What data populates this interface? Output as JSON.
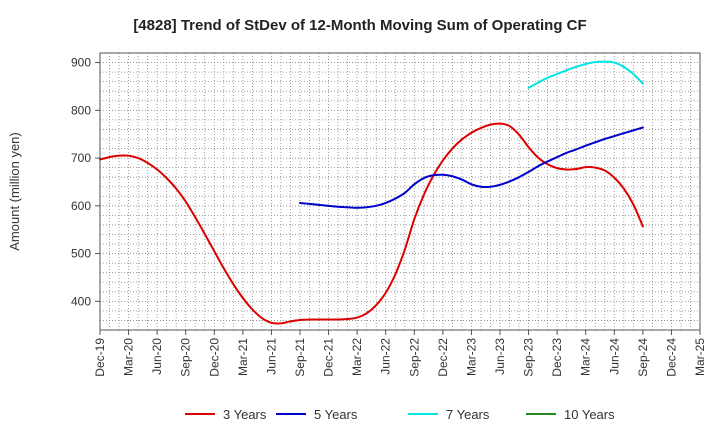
{
  "chart_data": {
    "type": "line",
    "title": "[4828]  Trend of StDev of 12-Month Moving Sum of Operating CF",
    "ylabel": "Amount (million yen)",
    "xlabel": "",
    "x_start": "Dec-19",
    "x_end": "Mar-25",
    "ylim": [
      340,
      920
    ],
    "yticks": [
      400,
      500,
      600,
      700,
      800,
      900
    ],
    "xticks": [
      "Dec-19",
      "Mar-20",
      "Jun-20",
      "Sep-20",
      "Dec-20",
      "Mar-21",
      "Jun-21",
      "Sep-21",
      "Dec-21",
      "Mar-22",
      "Jun-22",
      "Sep-22",
      "Dec-22",
      "Mar-23",
      "Jun-23",
      "Sep-23",
      "Dec-23",
      "Mar-24",
      "Jun-24",
      "Sep-24",
      "Dec-24",
      "Mar-25"
    ],
    "grid": true,
    "legend_position": "bottom",
    "series": [
      {
        "name": "3 Years",
        "color": "#dd0000",
        "x": [
          "Dec-19",
          "Jan-20",
          "Feb-20",
          "Mar-20",
          "Apr-20",
          "May-20",
          "Jun-20",
          "Jul-20",
          "Aug-20",
          "Sep-20",
          "Oct-20",
          "Nov-20",
          "Dec-20",
          "Jan-21",
          "Feb-21",
          "Mar-21",
          "Apr-21",
          "May-21",
          "Jun-21",
          "Jul-21",
          "Aug-21",
          "Sep-21",
          "Oct-21",
          "Nov-21",
          "Dec-21",
          "Jan-22",
          "Feb-22",
          "Mar-22",
          "Apr-22",
          "May-22",
          "Jun-22",
          "Jul-22",
          "Aug-22",
          "Sep-22",
          "Oct-22",
          "Nov-22",
          "Dec-22",
          "Jan-23",
          "Feb-23",
          "Mar-23",
          "Apr-23",
          "May-23",
          "Jun-23",
          "Jul-23",
          "Aug-23",
          "Sep-23",
          "Oct-23",
          "Nov-23",
          "Dec-23",
          "Jan-24",
          "Feb-24",
          "Mar-24",
          "Apr-24",
          "May-24",
          "Jun-24",
          "Jul-24",
          "Aug-24",
          "Sep-24"
        ],
        "values": [
          697,
          702,
          705,
          705,
          700,
          690,
          676,
          658,
          636,
          609,
          576,
          541,
          505,
          469,
          436,
          407,
          383,
          365,
          355,
          354,
          358,
          361,
          362,
          362,
          362,
          362,
          363,
          366,
          375,
          392,
          418,
          456,
          508,
          572,
          623,
          663,
          695,
          720,
          739,
          753,
          763,
          770,
          772,
          767,
          749,
          723,
          701,
          687,
          679,
          676,
          677,
          681,
          680,
          674,
          659,
          636,
          603,
          557
        ]
      },
      {
        "name": "5 Years",
        "color": "#0000cc",
        "x": [
          "Sep-21",
          "Oct-21",
          "Nov-21",
          "Dec-21",
          "Jan-22",
          "Feb-22",
          "Mar-22",
          "Apr-22",
          "May-22",
          "Jun-22",
          "Jul-22",
          "Aug-22",
          "Sep-22",
          "Oct-22",
          "Nov-22",
          "Dec-22",
          "Jan-23",
          "Feb-23",
          "Mar-23",
          "Apr-23",
          "May-23",
          "Jun-23",
          "Jul-23",
          "Aug-23",
          "Sep-23",
          "Oct-23",
          "Nov-23",
          "Dec-23",
          "Jan-24",
          "Feb-24",
          "Mar-24",
          "Apr-24",
          "May-24",
          "Jun-24",
          "Jul-24",
          "Aug-24",
          "Sep-24"
        ],
        "values": [
          606,
          604,
          602,
          600,
          598,
          597,
          596,
          597,
          600,
          606,
          615,
          627,
          645,
          658,
          664,
          665,
          662,
          655,
          645,
          640,
          640,
          644,
          651,
          660,
          671,
          683,
          693,
          702,
          711,
          718,
          726,
          733,
          740,
          746,
          752,
          758,
          764
        ]
      },
      {
        "name": "7 Years",
        "color": "#00e5e5",
        "x": [
          "Sep-23",
          "Oct-23",
          "Nov-23",
          "Dec-23",
          "Jan-24",
          "Feb-24",
          "Mar-24",
          "Apr-24",
          "May-24",
          "Jun-24",
          "Jul-24",
          "Aug-24",
          "Sep-24"
        ],
        "values": [
          847,
          858,
          868,
          876,
          884,
          891,
          897,
          901,
          902,
          900,
          891,
          876,
          856
        ]
      },
      {
        "name": "10 Years",
        "color": "#228822",
        "x": [],
        "values": []
      }
    ]
  }
}
